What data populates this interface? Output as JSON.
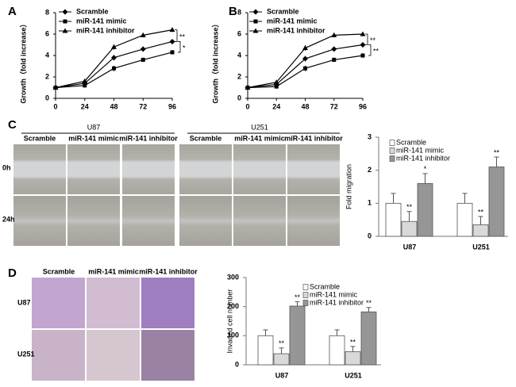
{
  "panels": {
    "labels": [
      "A",
      "B",
      "C",
      "D"
    ]
  },
  "migration_images": {
    "cell_lines": [
      "U87",
      "U251"
    ],
    "conditions": [
      "Scramble",
      "miR-141 mimic",
      "miR-141 inhibitor"
    ],
    "times": [
      "0h",
      "24h"
    ]
  },
  "invasion_images": {
    "conditions": [
      "Scramble",
      "miR-141 mimic",
      "miR-141 inhibitor"
    ],
    "cell_lines": [
      "U87",
      "U251"
    ]
  },
  "chart_data": [
    {
      "type": "line",
      "ylabel": "Growth（fold increase）",
      "x": [
        0,
        24,
        48,
        72,
        96
      ],
      "xlim": [
        0,
        96
      ],
      "xticks": [
        0,
        24,
        48,
        72,
        96
      ],
      "ylim": [
        0,
        8
      ],
      "yticks": [
        0,
        2,
        4,
        6,
        8
      ],
      "series": [
        {
          "name": "Scramble",
          "color": "#000000",
          "marker": "diamond",
          "values": [
            1,
            1.4,
            3.8,
            4.6,
            5.3
          ],
          "errors": [
            0.1,
            0.15,
            0.25,
            0.2,
            0.2
          ]
        },
        {
          "name": "miR-141 mimic",
          "color": "#000000",
          "marker": "square",
          "values": [
            1,
            1.2,
            2.8,
            3.6,
            4.3
          ],
          "errors": [
            0.1,
            0.15,
            0.25,
            0.2,
            0.2
          ]
        },
        {
          "name": "miR-141 inhibitor",
          "color": "#000000",
          "marker": "triangle",
          "values": [
            1,
            1.6,
            4.8,
            5.9,
            6.4
          ],
          "errors": [
            0.1,
            0.15,
            0.25,
            0.2,
            0.2
          ]
        }
      ],
      "annotations": [
        "**",
        "*"
      ]
    },
    {
      "type": "line",
      "ylabel": "Growth（fold increase）",
      "x": [
        0,
        24,
        48,
        72,
        96
      ],
      "xlim": [
        0,
        96
      ],
      "xticks": [
        0,
        24,
        48,
        72,
        96
      ],
      "ylim": [
        0,
        8
      ],
      "yticks": [
        0,
        2,
        4,
        6,
        8
      ],
      "series": [
        {
          "name": "Scramble",
          "color": "#000000",
          "marker": "diamond",
          "values": [
            1,
            1.3,
            3.7,
            4.6,
            5.0
          ],
          "errors": [
            0.1,
            0.15,
            0.25,
            0.2,
            0.2
          ]
        },
        {
          "name": "miR-141 mimic",
          "color": "#000000",
          "marker": "square",
          "values": [
            1,
            1.1,
            2.8,
            3.6,
            4.0
          ],
          "errors": [
            0.1,
            0.15,
            0.25,
            0.2,
            0.2
          ]
        },
        {
          "name": "miR-141 inhibitor",
          "color": "#000000",
          "marker": "triangle",
          "values": [
            1,
            1.5,
            4.7,
            5.9,
            6.0
          ],
          "errors": [
            0.1,
            0.15,
            0.25,
            0.2,
            0.2
          ]
        }
      ],
      "annotations": [
        "**",
        "**"
      ]
    },
    {
      "type": "bar",
      "ylabel": "Fold migration",
      "categories": [
        "U87",
        "U251"
      ],
      "ylim": [
        0,
        3
      ],
      "yticks": [
        0,
        1,
        2,
        3
      ],
      "series": [
        {
          "name": "Scramble",
          "color": "#ffffff",
          "values": [
            1,
            1
          ],
          "errors": [
            0.3,
            0.3
          ]
        },
        {
          "name": "miR-141 mimic",
          "color": "#d9d9d9",
          "values": [
            0.45,
            0.35
          ],
          "errors": [
            0.3,
            0.25
          ],
          "annotations": [
            "**",
            "**"
          ]
        },
        {
          "name": "miR-141 inhibitor",
          "color": "#969696",
          "values": [
            1.6,
            2.1
          ],
          "errors": [
            0.3,
            0.3
          ],
          "annotations": [
            "*",
            "**"
          ]
        }
      ]
    },
    {
      "type": "bar",
      "ylabel": "Invaded cell number",
      "categories": [
        "U87",
        "U251"
      ],
      "ylim": [
        0,
        300
      ],
      "yticks": [
        0,
        100,
        200,
        300
      ],
      "series": [
        {
          "name": "Scramble",
          "color": "#ffffff",
          "values": [
            100,
            100
          ],
          "errors": [
            20,
            20
          ]
        },
        {
          "name": "miR-141 mimic",
          "color": "#d9d9d9",
          "values": [
            38,
            45
          ],
          "errors": [
            20,
            18
          ],
          "annotations": [
            "**",
            "**"
          ]
        },
        {
          "name": "miR-141 inhibitor",
          "color": "#969696",
          "values": [
            202,
            182
          ],
          "errors": [
            15,
            15
          ],
          "annotations": [
            "**",
            "**"
          ]
        }
      ]
    }
  ]
}
